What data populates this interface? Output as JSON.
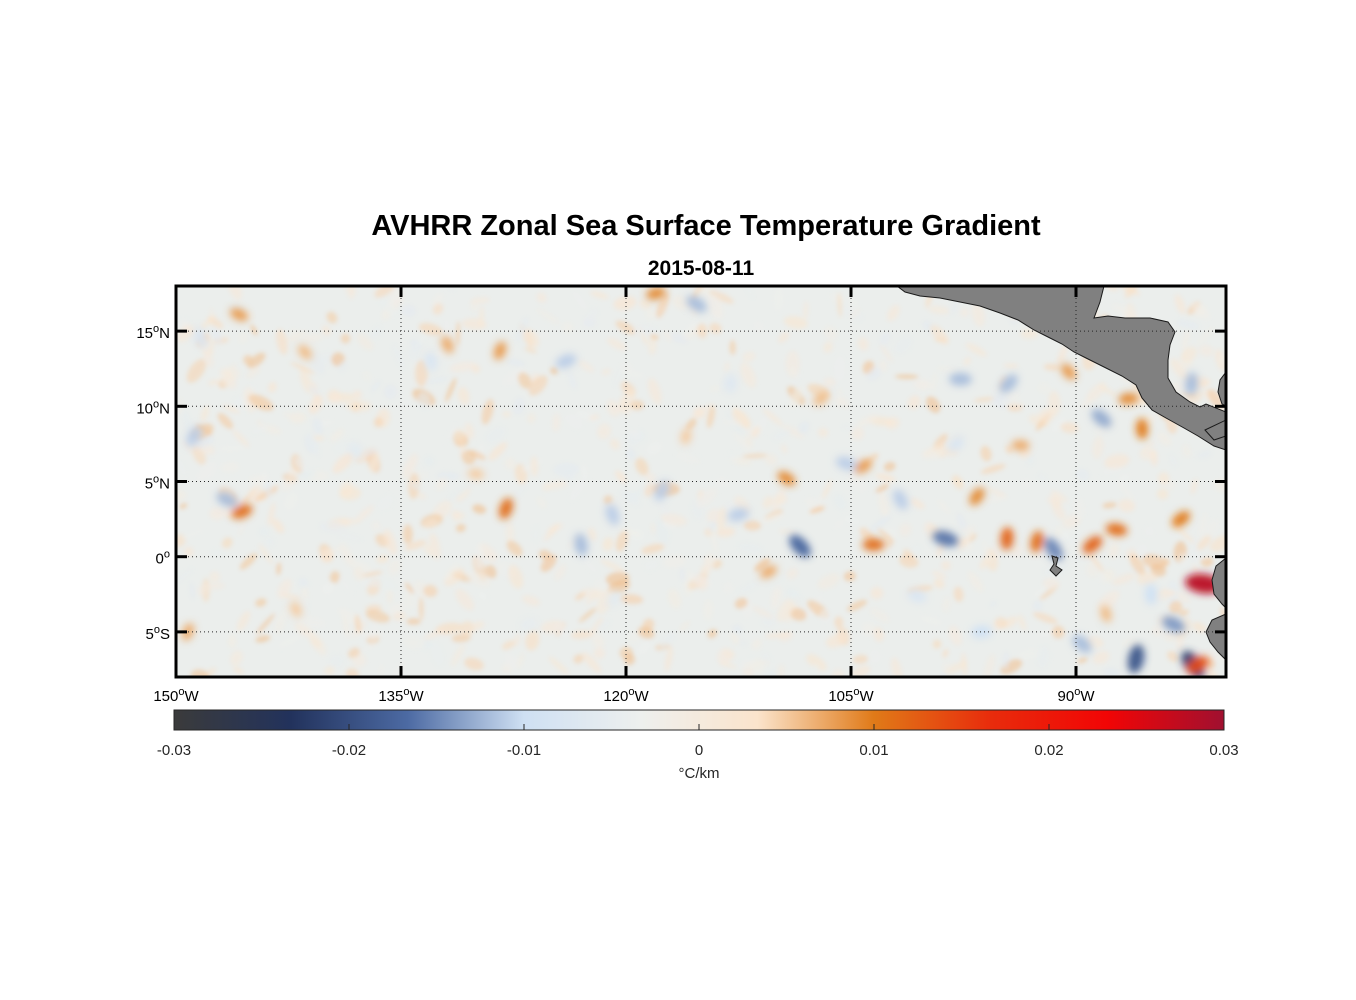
{
  "chart_data": {
    "type": "heatmap",
    "title": "AVHRR Zonal Sea Surface Temperature Gradient",
    "subtitle": "2015-08-11",
    "x_axis": {
      "range": [
        -150,
        -80
      ],
      "ticks": [
        {
          "value": -150,
          "deg": "150",
          "hemi": "W"
        },
        {
          "value": -135,
          "deg": "135",
          "hemi": "W"
        },
        {
          "value": -120,
          "deg": "120",
          "hemi": "W"
        },
        {
          "value": -105,
          "deg": "105",
          "hemi": "W"
        },
        {
          "value": -90,
          "deg": "90",
          "hemi": "W"
        }
      ]
    },
    "y_axis": {
      "range": [
        -8,
        18
      ],
      "ticks": [
        {
          "value": 15,
          "deg": "15",
          "hemi": "N"
        },
        {
          "value": 10,
          "deg": "10",
          "hemi": "N"
        },
        {
          "value": 5,
          "deg": "5",
          "hemi": "N"
        },
        {
          "value": 0,
          "deg": "0",
          "hemi": ""
        },
        {
          "value": -5,
          "deg": "5",
          "hemi": "S"
        }
      ]
    },
    "grid": true,
    "colorbar": {
      "range": [
        -0.03,
        0.03
      ],
      "ticks": [
        {
          "value": -0.03,
          "label": "-0.03"
        },
        {
          "value": -0.02,
          "label": "-0.02"
        },
        {
          "value": -0.01,
          "label": "-0.01"
        },
        {
          "value": 0,
          "label": "0"
        },
        {
          "value": 0.01,
          "label": "0.01"
        },
        {
          "value": 0.02,
          "label": "0.02"
        },
        {
          "value": 0.03,
          "label": "0.03"
        }
      ],
      "label": "°C/km",
      "colors": [
        "#3b3b3b",
        "#22325c",
        "#4c6aa3",
        "#cfe0f3",
        "#eef0ee",
        "#fbe4cc",
        "#e07a18",
        "#e82c0c",
        "#f20505",
        "#a01030"
      ]
    },
    "features": [
      {
        "lon": -103.5,
        "lat": 0.8,
        "value": 0.011
      },
      {
        "lon": -108.4,
        "lat": 0.7,
        "value": -0.017
      },
      {
        "lon": -94.6,
        "lat": 1.2,
        "value": 0.012
      },
      {
        "lon": -88.9,
        "lat": 0.8,
        "value": 0.012
      },
      {
        "lon": -81.5,
        "lat": -1.8,
        "value": 0.028
      },
      {
        "lon": -82.2,
        "lat": -7.2,
        "value": -0.022
      },
      {
        "lon": -86.0,
        "lat": -6.8,
        "value": -0.019
      },
      {
        "lon": -81.9,
        "lat": -7.2,
        "value": 0.014
      },
      {
        "lon": -98.7,
        "lat": 1.2,
        "value": -0.016
      },
      {
        "lon": -101.7,
        "lat": 3.8,
        "value": -0.011
      },
      {
        "lon": -128.0,
        "lat": 3.2,
        "value": 0.011
      },
      {
        "lon": -145.6,
        "lat": 3.0,
        "value": 0.011
      },
      {
        "lon": -146.6,
        "lat": 3.8,
        "value": -0.012
      },
      {
        "lon": -120.9,
        "lat": 2.8,
        "value": -0.011
      },
      {
        "lon": -117.6,
        "lat": 4.4,
        "value": -0.011
      },
      {
        "lon": -112.5,
        "lat": 2.8,
        "value": -0.011
      },
      {
        "lon": -109.3,
        "lat": 5.2,
        "value": 0.009
      },
      {
        "lon": -123.0,
        "lat": 0.8,
        "value": -0.012
      },
      {
        "lon": -96.6,
        "lat": 4.0,
        "value": 0.009
      },
      {
        "lon": -86.5,
        "lat": 10.5,
        "value": 0.009
      },
      {
        "lon": -88.3,
        "lat": 9.2,
        "value": -0.013
      },
      {
        "lon": -85.6,
        "lat": 8.5,
        "value": 0.01
      },
      {
        "lon": -94.5,
        "lat": 11.5,
        "value": -0.012
      },
      {
        "lon": -97.7,
        "lat": 11.8,
        "value": -0.012
      },
      {
        "lon": -90.5,
        "lat": 12.3,
        "value": 0.008
      },
      {
        "lon": -82.3,
        "lat": 11.5,
        "value": -0.012
      },
      {
        "lon": -83.0,
        "lat": 2.5,
        "value": 0.01
      },
      {
        "lon": -87.3,
        "lat": 1.8,
        "value": 0.011
      },
      {
        "lon": -91.5,
        "lat": 0.5,
        "value": -0.015
      },
      {
        "lon": -92.6,
        "lat": 1.0,
        "value": 0.011
      },
      {
        "lon": -104.2,
        "lat": 6.0,
        "value": 0.008
      },
      {
        "lon": -105.3,
        "lat": 6.2,
        "value": -0.011
      },
      {
        "lon": -131.9,
        "lat": 14.1,
        "value": 0.007
      },
      {
        "lon": -128.4,
        "lat": 13.7,
        "value": 0.008
      },
      {
        "lon": -124.0,
        "lat": 13.0,
        "value": -0.011
      },
      {
        "lon": -145.8,
        "lat": 16.1,
        "value": 0.008
      },
      {
        "lon": -148.4,
        "lat": 14.6,
        "value": -0.008
      },
      {
        "lon": -148.8,
        "lat": 8.0,
        "value": -0.011
      },
      {
        "lon": -118.0,
        "lat": 17.5,
        "value": 0.009
      },
      {
        "lon": -115.3,
        "lat": 16.8,
        "value": -0.012
      },
      {
        "lon": -133.0,
        "lat": 13.0,
        "value": -0.008
      },
      {
        "lon": -120.8,
        "lat": -2.8,
        "value": -0.006
      },
      {
        "lon": -96.3,
        "lat": -5.0,
        "value": -0.01
      },
      {
        "lon": -89.6,
        "lat": -5.8,
        "value": -0.012
      },
      {
        "lon": -85.0,
        "lat": -2.5,
        "value": -0.01
      },
      {
        "lon": -98.0,
        "lat": 7.5,
        "value": -0.008
      },
      {
        "lon": -93.7,
        "lat": 7.4,
        "value": 0.007
      },
      {
        "lon": -141.4,
        "lat": 13.6,
        "value": 0.006
      },
      {
        "lon": -113.0,
        "lat": 11.5,
        "value": -0.007
      },
      {
        "lon": -107.0,
        "lat": 10.5,
        "value": 0.006
      },
      {
        "lon": -130.0,
        "lat": 5.5,
        "value": 0.005
      },
      {
        "lon": -138.0,
        "lat": 7.0,
        "value": -0.006
      },
      {
        "lon": -116.0,
        "lat": 8.0,
        "value": 0.005
      },
      {
        "lon": -110.5,
        "lat": -1.0,
        "value": 0.007
      },
      {
        "lon": -100.6,
        "lat": -2.6,
        "value": -0.008
      },
      {
        "lon": -142.0,
        "lat": -3.5,
        "value": 0.005
      },
      {
        "lon": -149.2,
        "lat": -5.0,
        "value": 0.007
      },
      {
        "lon": -126.5,
        "lat": -4.5,
        "value": -0.005
      },
      {
        "lon": -83.5,
        "lat": -4.5,
        "value": -0.014
      },
      {
        "lon": -88.0,
        "lat": -3.8,
        "value": 0.006
      }
    ]
  }
}
